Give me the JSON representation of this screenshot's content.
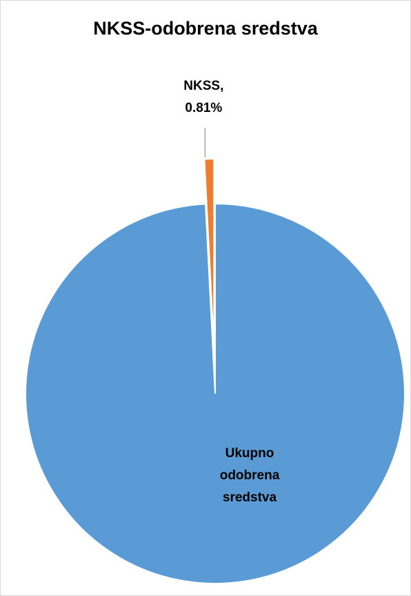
{
  "chart_data": {
    "type": "pie",
    "title": "NKSS-odobrena sredstva",
    "slices": [
      {
        "label": "Ukupno odobrena sredstva",
        "value": 99.19,
        "color": "#5b9bd5",
        "label_lines": [
          "Ukupno",
          "odobrena",
          "sredstva"
        ]
      },
      {
        "label": "NKSS",
        "value": 0.81,
        "color": "#ed7d31",
        "label_lines": [
          "NKSS,",
          "0.81%"
        ],
        "exploded": true
      }
    ],
    "legend": "none",
    "data_labels": "outside-end for NKSS with leader line; inside for Ukupno odobrena sredstva"
  }
}
